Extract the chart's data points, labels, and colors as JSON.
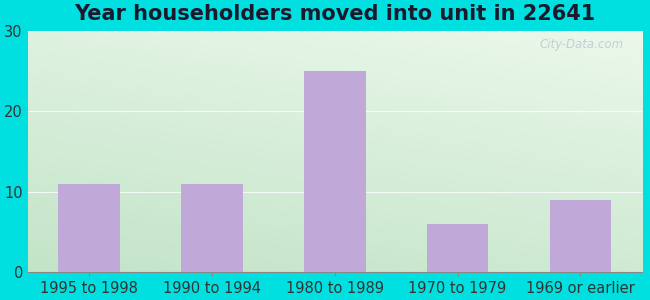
{
  "title": "Year householders moved into unit in 22641",
  "categories": [
    "1995 to 1998",
    "1990 to 1994",
    "1980 to 1989",
    "1970 to 1979",
    "1969 or earlier"
  ],
  "values": [
    11,
    11,
    25,
    6,
    9
  ],
  "bar_color": "#c0a8d8",
  "ylim": [
    0,
    30
  ],
  "yticks": [
    0,
    10,
    20,
    30
  ],
  "background_outer": "#00e0e0",
  "title_fontsize": 15,
  "tick_fontsize": 10.5,
  "watermark": "City-Data.com"
}
